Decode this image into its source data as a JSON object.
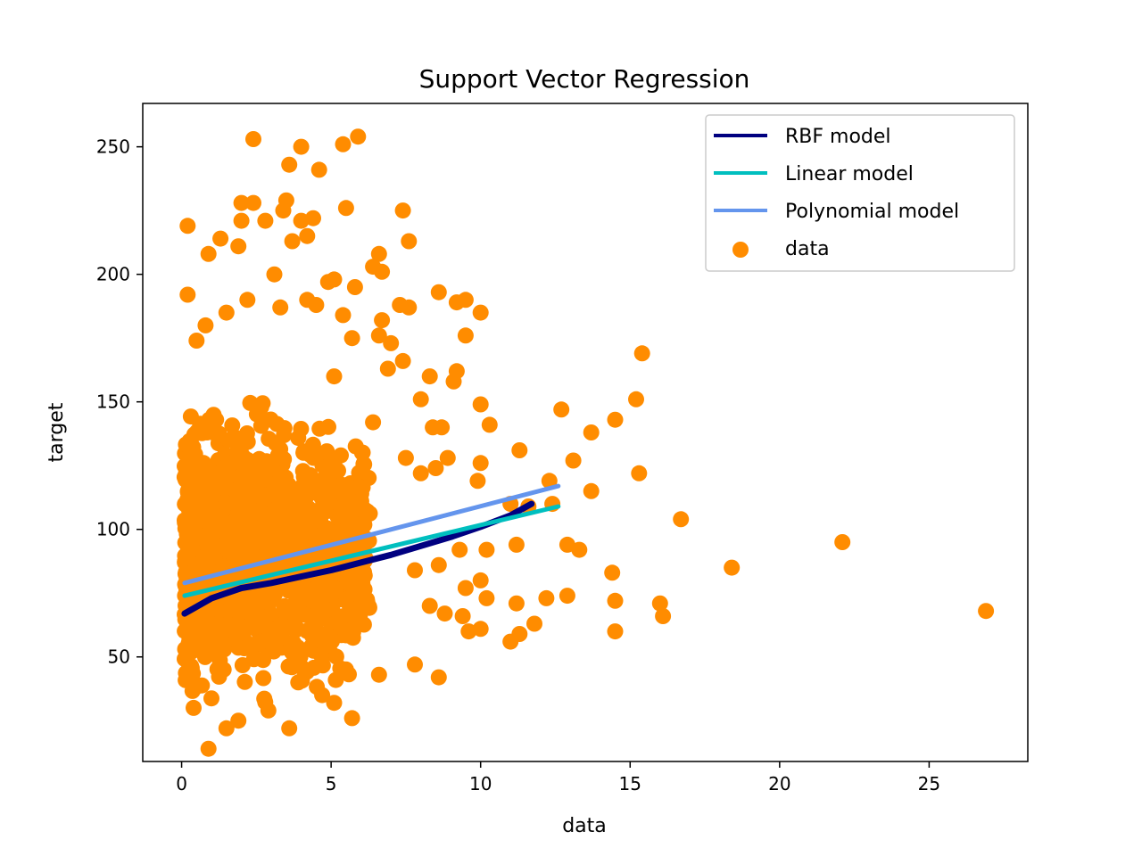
{
  "chart_data": {
    "type": "scatter",
    "title": "Support Vector Regression",
    "xlabel": "data",
    "ylabel": "target",
    "xlim": [
      -1.3,
      28.3
    ],
    "ylim": [
      9,
      267
    ],
    "x_ticks": [
      0,
      5,
      10,
      15,
      20,
      25
    ],
    "x_tick_labels": [
      "0",
      "5",
      "10",
      "15",
      "20",
      "25"
    ],
    "y_ticks": [
      50,
      100,
      150,
      200,
      250
    ],
    "y_tick_labels": [
      "50",
      "100",
      "150",
      "200",
      "250"
    ],
    "grid": false,
    "legend_position": "top-right",
    "scatter_series": {
      "name": "data",
      "color": "#ff8c00",
      "dense_cluster": {
        "x_range": [
          0.1,
          6.3
        ],
        "y_range": [
          20,
          165
        ],
        "count": 1300
      },
      "points": [
        [
          0.9,
          14
        ],
        [
          1.5,
          22
        ],
        [
          3.6,
          22
        ],
        [
          5.7,
          26
        ],
        [
          0.4,
          30
        ],
        [
          1.9,
          25
        ],
        [
          2.9,
          29
        ],
        [
          5.1,
          32
        ],
        [
          4.7,
          35
        ],
        [
          3.9,
          40
        ],
        [
          6.6,
          43
        ],
        [
          7.8,
          47
        ],
        [
          8.6,
          42
        ],
        [
          10.0,
          61
        ],
        [
          9.6,
          60
        ],
        [
          11.0,
          56
        ],
        [
          11.3,
          59
        ],
        [
          11.8,
          63
        ],
        [
          11.2,
          71
        ],
        [
          12.2,
          73
        ],
        [
          12.9,
          74
        ],
        [
          10.2,
          73
        ],
        [
          9.4,
          66
        ],
        [
          8.8,
          67
        ],
        [
          8.3,
          70
        ],
        [
          9.5,
          77
        ],
        [
          10.0,
          80
        ],
        [
          7.8,
          84
        ],
        [
          8.6,
          86
        ],
        [
          9.3,
          92
        ],
        [
          10.2,
          92
        ],
        [
          11.2,
          94
        ],
        [
          12.9,
          94
        ],
        [
          13.3,
          92
        ],
        [
          14.4,
          83
        ],
        [
          14.5,
          72
        ],
        [
          14.5,
          60
        ],
        [
          16.0,
          71
        ],
        [
          16.1,
          66
        ],
        [
          18.4,
          85
        ],
        [
          22.1,
          95
        ],
        [
          26.9,
          68
        ],
        [
          16.7,
          104
        ],
        [
          12.3,
          119
        ],
        [
          13.1,
          127
        ],
        [
          13.7,
          115
        ],
        [
          15.3,
          122
        ],
        [
          12.7,
          147
        ],
        [
          13.7,
          138
        ],
        [
          14.5,
          143
        ],
        [
          15.2,
          151
        ],
        [
          15.4,
          169
        ],
        [
          11.3,
          131
        ],
        [
          10.3,
          141
        ],
        [
          10.0,
          126
        ],
        [
          10.0,
          149
        ],
        [
          9.9,
          119
        ],
        [
          9.2,
          162
        ],
        [
          9.1,
          158
        ],
        [
          9.5,
          176
        ],
        [
          10.0,
          185
        ],
        [
          9.5,
          190
        ],
        [
          9.2,
          189
        ],
        [
          8.6,
          193
        ],
        [
          8.3,
          160
        ],
        [
          8.0,
          151
        ],
        [
          8.4,
          140
        ],
        [
          8.7,
          140
        ],
        [
          8.9,
          128
        ],
        [
          8.5,
          124
        ],
        [
          8.0,
          122
        ],
        [
          7.5,
          128
        ],
        [
          7.4,
          166
        ],
        [
          7.6,
          187
        ],
        [
          7.3,
          188
        ],
        [
          7.0,
          173
        ],
        [
          6.6,
          176
        ],
        [
          6.7,
          182
        ],
        [
          7.6,
          213
        ],
        [
          7.4,
          225
        ],
        [
          6.7,
          201
        ],
        [
          6.4,
          203
        ],
        [
          6.6,
          208
        ],
        [
          6.9,
          163
        ],
        [
          6.4,
          142
        ],
        [
          5.8,
          195
        ],
        [
          5.5,
          226
        ],
        [
          5.4,
          251
        ],
        [
          5.9,
          254
        ],
        [
          4.0,
          250
        ],
        [
          4.6,
          241
        ],
        [
          2.4,
          253
        ],
        [
          3.6,
          243
        ],
        [
          3.5,
          229
        ],
        [
          2.8,
          221
        ],
        [
          2.4,
          228
        ],
        [
          2.0,
          228
        ],
        [
          2.0,
          221
        ],
        [
          1.3,
          214
        ],
        [
          0.9,
          208
        ],
        [
          0.2,
          219
        ],
        [
          0.2,
          192
        ],
        [
          1.9,
          211
        ],
        [
          3.4,
          225
        ],
        [
          4.0,
          221
        ],
        [
          4.4,
          222
        ],
        [
          4.2,
          215
        ],
        [
          3.7,
          213
        ],
        [
          3.1,
          200
        ],
        [
          4.5,
          188
        ],
        [
          4.9,
          197
        ],
        [
          5.1,
          198
        ],
        [
          5.4,
          184
        ],
        [
          5.7,
          175
        ],
        [
          5.1,
          160
        ],
        [
          4.2,
          190
        ],
        [
          3.3,
          187
        ],
        [
          2.2,
          190
        ],
        [
          1.5,
          185
        ],
        [
          0.8,
          180
        ],
        [
          0.5,
          174
        ],
        [
          11.0,
          110
        ],
        [
          11.6,
          109
        ],
        [
          12.4,
          110
        ]
      ]
    },
    "series": [
      {
        "name": "RBF model",
        "color": "#000080",
        "x": [
          0.1,
          1,
          2,
          3,
          4,
          5,
          6,
          7,
          8,
          9,
          10,
          11,
          11.7
        ],
        "y": [
          67,
          73,
          77,
          79,
          81.5,
          84,
          87,
          90,
          93.5,
          97,
          101,
          105.5,
          110
        ]
      },
      {
        "name": "Linear model",
        "color": "#00bfbf",
        "x": [
          0.1,
          12.6
        ],
        "y": [
          74,
          109
        ]
      },
      {
        "name": "Polynomial model",
        "color": "#6495ed",
        "x": [
          0.1,
          12.6
        ],
        "y": [
          79,
          117
        ]
      }
    ]
  }
}
